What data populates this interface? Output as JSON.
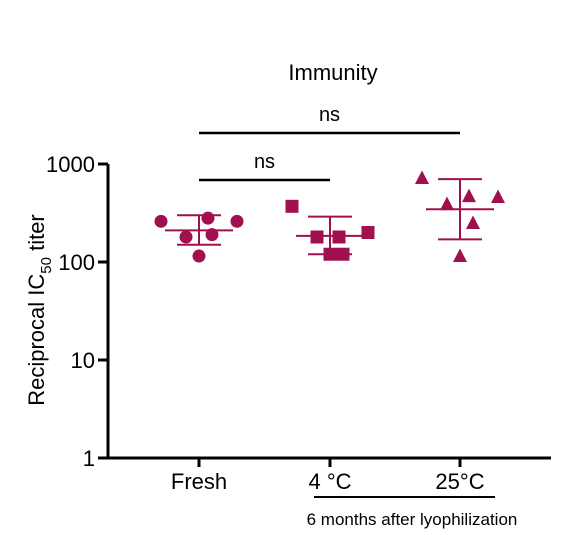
{
  "chart_data": {
    "type": "scatter",
    "title": "Immunity",
    "ylabel": {
      "main": "Reciprocal IC",
      "sub": "50",
      "tail": " titer"
    },
    "yscale": "log",
    "ylim": [
      1,
      1000
    ],
    "yticks": [
      {
        "value": 1,
        "label": "1"
      },
      {
        "value": 10,
        "label": "10"
      },
      {
        "value": 100,
        "label": "100"
      },
      {
        "value": 1000,
        "label": "1000"
      }
    ],
    "categories": [
      "Fresh",
      "4 °C",
      "25°C"
    ],
    "group_label": "6 months after lyophilization",
    "marker_color": "#a0104f",
    "series": [
      {
        "category": "Fresh",
        "marker": "circle",
        "values": [
          260,
          260,
          280,
          180,
          190,
          115
        ],
        "mean": 210,
        "sd_upper": 300,
        "sd_lower": 150
      },
      {
        "category": "4 °C",
        "marker": "square",
        "values": [
          370,
          200,
          180,
          180,
          120,
          120
        ],
        "mean": 185,
        "sd_upper": 290,
        "sd_lower": 120
      },
      {
        "category": "25°C",
        "marker": "triangle",
        "values": [
          720,
          460,
          470,
          390,
          250,
          115
        ],
        "mean": 345,
        "sd_upper": 700,
        "sd_lower": 170
      }
    ],
    "annotations": [
      {
        "text": "ns",
        "from": "Fresh",
        "to": "25°C"
      },
      {
        "text": "ns",
        "from": "Fresh",
        "to": "4 °C"
      }
    ]
  }
}
